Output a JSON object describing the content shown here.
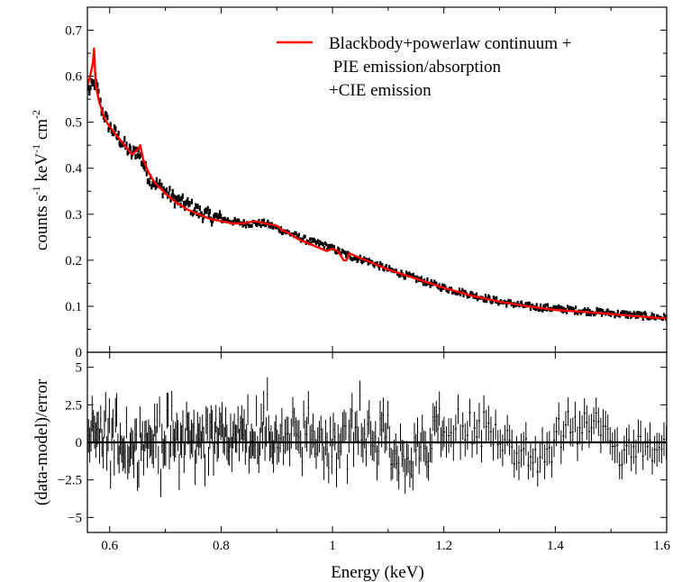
{
  "chart_data": [
    {
      "type": "scatter",
      "panel": "top",
      "xlim": [
        0.56,
        1.6
      ],
      "ylim": [
        0,
        0.75
      ],
      "ylabel_parts": [
        "counts s",
        "-1",
        " keV",
        "-1",
        " cm",
        "-2"
      ],
      "ylabel": "counts s-1 keV-1 cm-2",
      "yticks": [
        0,
        0.1,
        0.2,
        0.3,
        0.4,
        0.5,
        0.6,
        0.7
      ],
      "ytick_labels": [
        "0",
        "0.1",
        "0.2",
        "0.3",
        "0.4",
        "0.5",
        "0.6",
        "0.7"
      ],
      "legend": {
        "lines": [
          "Blackbody+powerlaw continuum +",
          " PIE emission/absorption",
          "+CIE emission"
        ],
        "color": "#ff0000",
        "placement": "top-right"
      },
      "series": [
        {
          "name": "data",
          "color": "#000000",
          "note": "dense spectral data points with small error bars",
          "x": [
            0.565,
            0.575,
            0.585,
            0.6,
            0.62,
            0.64,
            0.65,
            0.66,
            0.67,
            0.68,
            0.7,
            0.72,
            0.74,
            0.76,
            0.78,
            0.8,
            0.82,
            0.84,
            0.86,
            0.88,
            0.9,
            0.92,
            0.94,
            0.96,
            0.98,
            1.0,
            1.02,
            1.04,
            1.06,
            1.08,
            1.1,
            1.15,
            1.2,
            1.25,
            1.3,
            1.35,
            1.4,
            1.45,
            1.5,
            1.55,
            1.6
          ],
          "y": [
            0.57,
            0.59,
            0.53,
            0.49,
            0.46,
            0.43,
            0.44,
            0.41,
            0.38,
            0.37,
            0.35,
            0.33,
            0.32,
            0.305,
            0.295,
            0.29,
            0.285,
            0.28,
            0.28,
            0.28,
            0.27,
            0.26,
            0.25,
            0.24,
            0.235,
            0.225,
            0.215,
            0.205,
            0.2,
            0.19,
            0.18,
            0.16,
            0.14,
            0.125,
            0.11,
            0.1,
            0.095,
            0.09,
            0.085,
            0.08,
            0.075
          ]
        },
        {
          "name": "Blackbody+powerlaw continuum + PIE emission/absorption +CIE emission",
          "type": "line",
          "color": "#ff0000",
          "x": [
            0.56,
            0.565,
            0.57,
            0.572,
            0.575,
            0.58,
            0.59,
            0.6,
            0.62,
            0.64,
            0.65,
            0.655,
            0.66,
            0.67,
            0.68,
            0.7,
            0.72,
            0.74,
            0.76,
            0.78,
            0.8,
            0.82,
            0.84,
            0.86,
            0.88,
            0.9,
            0.91,
            0.92,
            0.94,
            0.96,
            0.98,
            0.99,
            1.0,
            1.01,
            1.02,
            1.025,
            1.03,
            1.04,
            1.06,
            1.08,
            1.1,
            1.12,
            1.15,
            1.2,
            1.25,
            1.3,
            1.35,
            1.4,
            1.45,
            1.5,
            1.55,
            1.6
          ],
          "y": [
            0.58,
            0.6,
            0.63,
            0.66,
            0.58,
            0.55,
            0.51,
            0.49,
            0.46,
            0.43,
            0.44,
            0.45,
            0.42,
            0.39,
            0.37,
            0.345,
            0.325,
            0.31,
            0.3,
            0.29,
            0.285,
            0.28,
            0.28,
            0.285,
            0.28,
            0.275,
            0.265,
            0.26,
            0.245,
            0.235,
            0.225,
            0.22,
            0.225,
            0.22,
            0.2,
            0.2,
            0.215,
            0.21,
            0.2,
            0.19,
            0.18,
            0.172,
            0.16,
            0.14,
            0.123,
            0.11,
            0.1,
            0.092,
            0.088,
            0.083,
            0.078,
            0.073
          ]
        }
      ]
    },
    {
      "type": "scatter",
      "panel": "bottom",
      "xlim": [
        0.56,
        1.6
      ],
      "ylim": [
        -6,
        6
      ],
      "xlabel": "Energy (keV)",
      "ylabel": "(data-model)/error",
      "xticks": [
        0.6,
        0.8,
        1.0,
        1.2,
        1.4,
        1.6
      ],
      "xtick_labels": [
        "0.6",
        "0.8",
        "1",
        "1.2",
        "1.4",
        "1.6"
      ],
      "yticks": [
        -5,
        -2.5,
        0,
        2.5,
        5
      ],
      "ytick_labels": [
        "−5",
        "−2.5",
        "0",
        "2.5",
        "5"
      ],
      "reference_line": 0,
      "series": [
        {
          "name": "residuals",
          "color": "#000000",
          "note": "residuals with error bars scattered approximately within ±3.5",
          "bins": [
            {
              "x0": 0.56,
              "x1": 0.76,
              "mean": 0.2,
              "spread": 1.6
            },
            {
              "x0": 0.76,
              "x1": 0.9,
              "mean": 0.4,
              "spread": 1.4
            },
            {
              "x0": 0.9,
              "x1": 1.0,
              "mean": 0.1,
              "spread": 1.3
            },
            {
              "x0": 1.0,
              "x1": 1.1,
              "mean": 0.6,
              "spread": 1.4
            },
            {
              "x0": 1.1,
              "x1": 1.18,
              "mean": -0.9,
              "spread": 1.2
            },
            {
              "x0": 1.18,
              "x1": 1.32,
              "mean": 0.8,
              "spread": 1.2
            },
            {
              "x0": 1.32,
              "x1": 1.4,
              "mean": -1.0,
              "spread": 1.0
            },
            {
              "x0": 1.4,
              "x1": 1.5,
              "mean": 0.9,
              "spread": 0.9
            },
            {
              "x0": 1.5,
              "x1": 1.6,
              "mean": -0.6,
              "spread": 0.9
            }
          ]
        }
      ]
    }
  ]
}
